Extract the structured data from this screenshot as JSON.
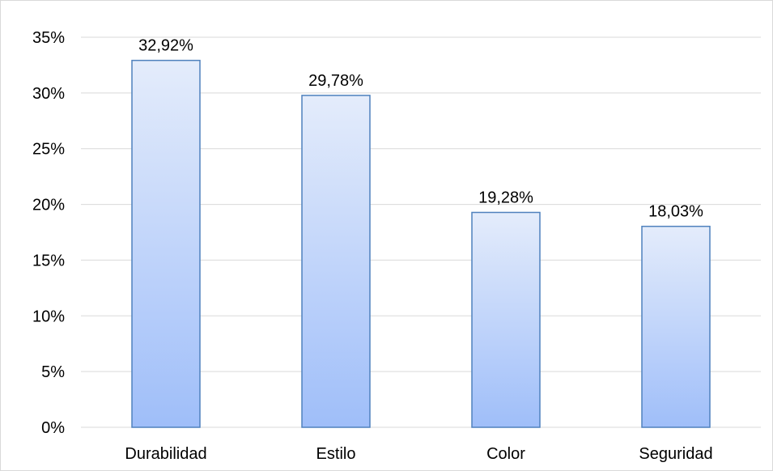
{
  "chart_data": {
    "type": "bar",
    "title": "",
    "xlabel": "",
    "ylabel": "",
    "categories": [
      "Durabilidad",
      "Estilo",
      "Color",
      "Seguridad"
    ],
    "values": [
      32.92,
      29.78,
      19.28,
      18.03
    ],
    "value_labels": [
      "32,92%",
      "29,78%",
      "19,28%",
      "18,03%"
    ],
    "ylim": [
      0,
      35
    ],
    "yticks": [
      0,
      5,
      10,
      15,
      20,
      25,
      30,
      35
    ],
    "ytick_labels": [
      "0%",
      "5%",
      "10%",
      "15%",
      "20%",
      "25%",
      "30%",
      "35%"
    ],
    "grid": true,
    "legend": "none",
    "colors": {
      "bar_top": "#e4ecfb",
      "bar_bottom": "#9fbef9",
      "bar_border": "#4f81bd",
      "grid": "#d9d9d9",
      "axis": "#d9d9d9"
    }
  }
}
